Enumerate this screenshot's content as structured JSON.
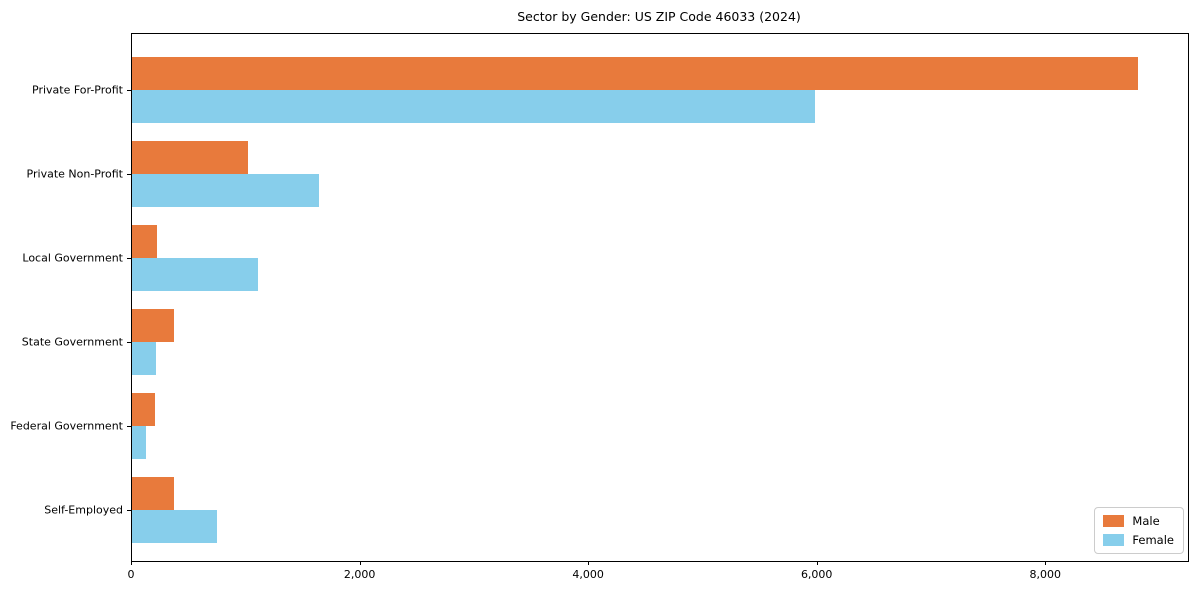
{
  "chart": {
    "title": "Sector by Gender: US ZIP Code 46033 (2024)"
  },
  "chart_data": {
    "type": "bar",
    "orientation": "horizontal",
    "title": "Sector by Gender: US ZIP Code 46033 (2024)",
    "categories": [
      "Private For-Profit",
      "Private Non-Profit",
      "Local Government",
      "State Government",
      "Federal Government",
      "Self-Employed"
    ],
    "series": [
      {
        "name": "Male",
        "color": "#e87a3c",
        "values": [
          8800,
          1015,
          220,
          370,
          200,
          365
        ]
      },
      {
        "name": "Female",
        "color": "#87ceeb",
        "values": [
          5980,
          1640,
          1105,
          210,
          120,
          745
        ]
      }
    ],
    "xlabel": "",
    "ylabel": "",
    "xlim": [
      0,
      9240
    ],
    "xticks": [
      {
        "value": 0,
        "label": "0"
      },
      {
        "value": 2000,
        "label": "2,000"
      },
      {
        "value": 4000,
        "label": "4,000"
      },
      {
        "value": 6000,
        "label": "6,000"
      },
      {
        "value": 8000,
        "label": "8,000"
      }
    ],
    "grid": false,
    "legend": {
      "position": "lower right"
    },
    "colors": {
      "male": "#e87a3c",
      "female": "#87ceeb",
      "spine": "#000000",
      "legend_border": "#cccccc"
    }
  }
}
